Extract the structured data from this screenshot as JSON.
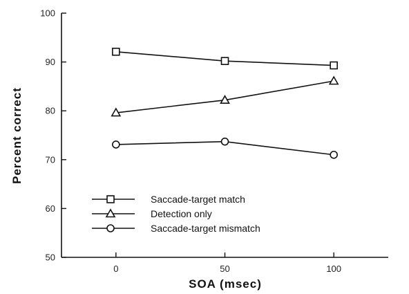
{
  "chart_data": {
    "type": "line",
    "title": "",
    "xlabel": "SOA  (msec)",
    "ylabel": "Percent   correct",
    "x": [
      0,
      50,
      100
    ],
    "xlim": [
      -25,
      125
    ],
    "ylim": [
      50,
      100
    ],
    "xticks": [
      0,
      50,
      100
    ],
    "yticks": [
      50,
      60,
      70,
      80,
      90,
      100
    ],
    "grid": false,
    "legend_position": "bottom-left",
    "series": [
      {
        "name": "Saccade-target match",
        "marker": "square",
        "values": [
          92.1,
          90.2,
          89.3
        ]
      },
      {
        "name": "Detection only",
        "marker": "triangle",
        "values": [
          79.6,
          82.2,
          86.1
        ]
      },
      {
        "name": "Saccade-target mismatch",
        "marker": "circle",
        "values": [
          73.1,
          73.7,
          71.0
        ]
      }
    ]
  }
}
